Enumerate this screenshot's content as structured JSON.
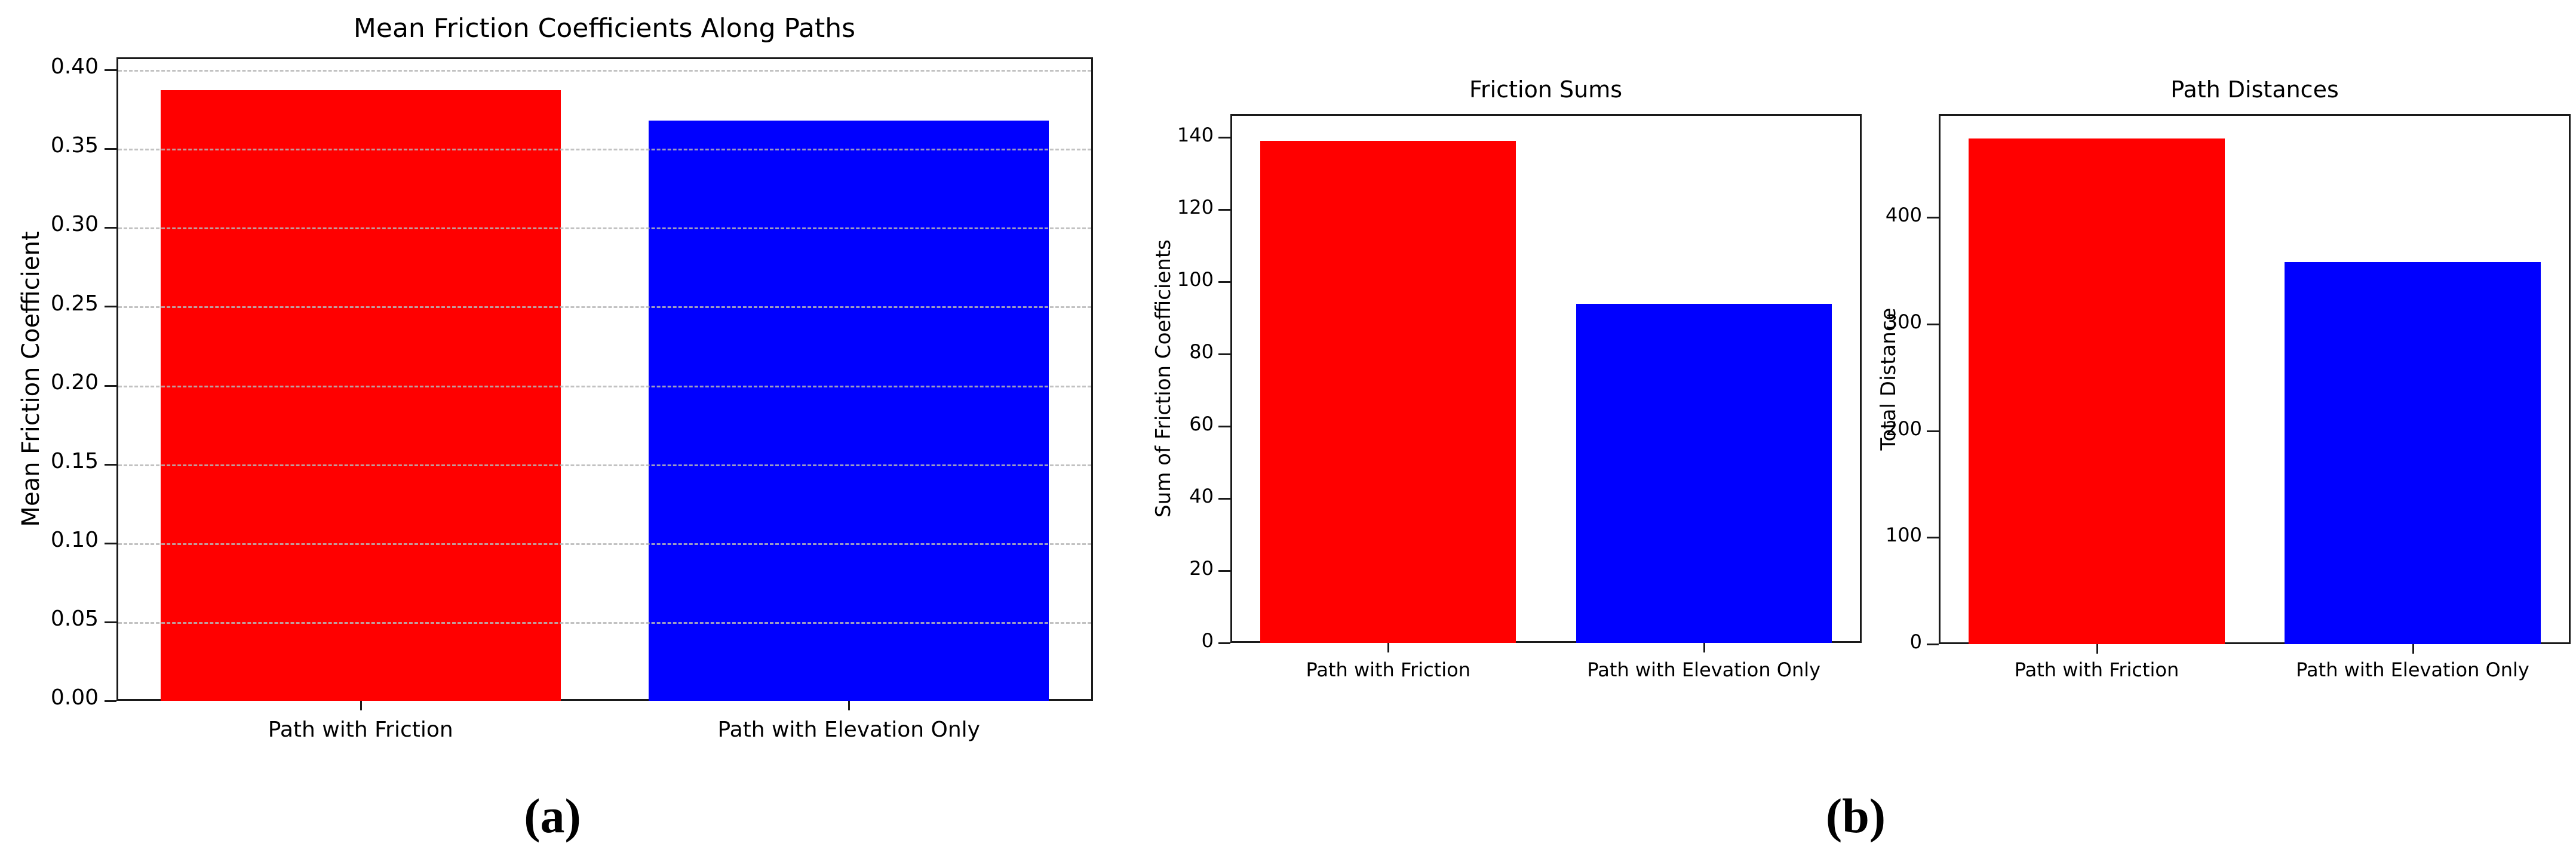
{
  "figure": {
    "background": "#ffffff",
    "captions": [
      {
        "id": "a",
        "text": "(a)"
      },
      {
        "id": "b",
        "text": "(b)"
      }
    ]
  },
  "styles": {
    "bar_red": "#ff0000",
    "bar_blue": "#0000ff",
    "grid_color": "#b8b8b8",
    "spine_color": "#1a1a1a",
    "text_color": "#000000"
  },
  "chart_data": [
    {
      "id": "mean-friction-coefficients",
      "type": "bar",
      "title": "Mean Friction Coefficients Along Paths",
      "xlabel": "",
      "ylabel": "Mean Friction Coefficient",
      "categories": [
        "Path with Friction",
        "Path with Elevation Only"
      ],
      "values": [
        0.387,
        0.368
      ],
      "bar_colors": [
        "#ff0000",
        "#0000ff"
      ],
      "ylim": [
        0,
        0.408
      ],
      "yticks": [
        0.0,
        0.05,
        0.1,
        0.15,
        0.2,
        0.25,
        0.3,
        0.35,
        0.4
      ],
      "ytick_labels": [
        "0.00",
        "0.05",
        "0.10",
        "0.15",
        "0.20",
        "0.25",
        "0.30",
        "0.35",
        "0.40"
      ],
      "grid": true,
      "grid_style": "dashed",
      "legend": "none"
    },
    {
      "id": "friction-sums",
      "type": "bar",
      "title": "Friction Sums",
      "xlabel": "",
      "ylabel": "Sum of Friction Coefficients",
      "categories": [
        "Path with Friction",
        "Path with Elevation Only"
      ],
      "values": [
        139,
        94
      ],
      "bar_colors": [
        "#ff0000",
        "#0000ff"
      ],
      "ylim": [
        0,
        146.5
      ],
      "yticks": [
        0,
        20,
        40,
        60,
        80,
        100,
        120,
        140
      ],
      "ytick_labels": [
        "0",
        "20",
        "40",
        "60",
        "80",
        "100",
        "120",
        "140"
      ],
      "grid": false,
      "grid_style": "none",
      "legend": "none"
    },
    {
      "id": "path-distances",
      "type": "bar",
      "title": "Path Distances",
      "xlabel": "",
      "ylabel": "Total Distance",
      "categories": [
        "Path with Friction",
        "Path with Elevation Only"
      ],
      "values": [
        474,
        358
      ],
      "bar_colors": [
        "#ff0000",
        "#0000ff"
      ],
      "ylim": [
        0,
        497
      ],
      "yticks": [
        0,
        100,
        200,
        300,
        400
      ],
      "ytick_labels": [
        "0",
        "100",
        "200",
        "300",
        "400"
      ],
      "grid": false,
      "grid_style": "none",
      "legend": "none"
    }
  ]
}
